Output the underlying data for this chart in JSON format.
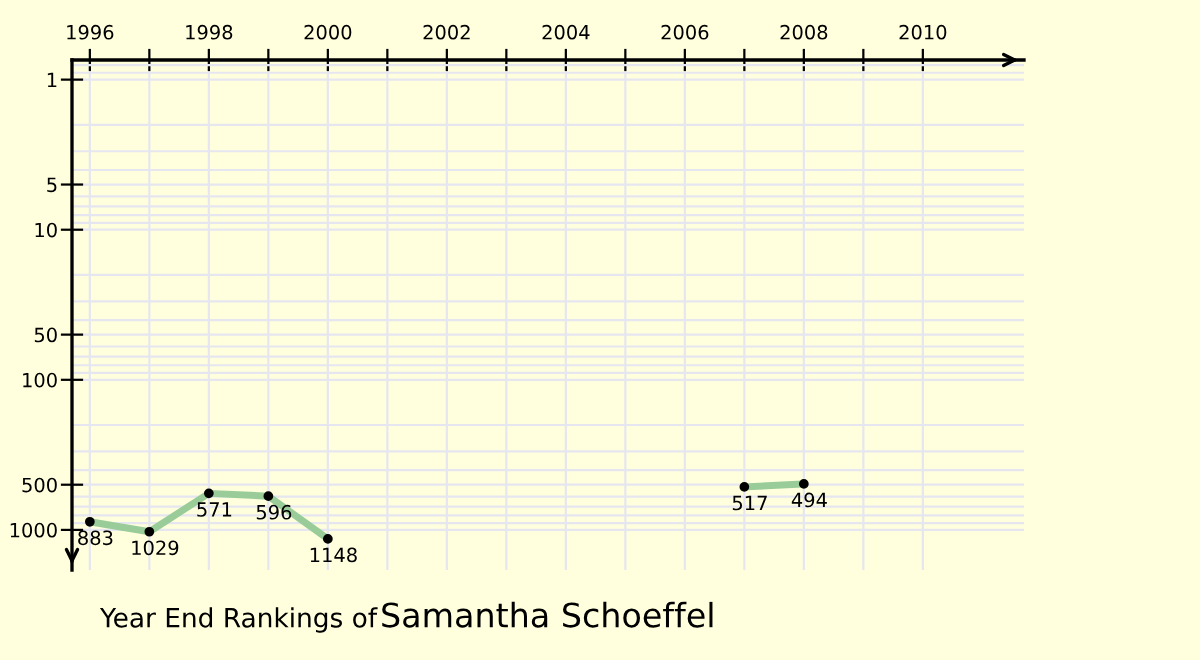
{
  "chart_data": {
    "type": "line",
    "title": "Year End Rankings of",
    "subtitle": "Samantha Schoeffel",
    "x": [
      1996,
      1997,
      1998,
      1999,
      2000,
      2001,
      2002,
      2003,
      2004,
      2005,
      2006,
      2007,
      2008
    ],
    "series": [
      {
        "color": "#99cc99",
        "values": [
          883,
          1029,
          571,
          596,
          1148,
          null,
          null,
          null,
          null,
          null,
          null,
          517,
          494
        ]
      }
    ],
    "xlim": [
      1995.7,
      2011.7
    ],
    "xticks": [
      1996,
      {
        "value": 1997,
        "label": null
      },
      1998,
      {
        "value": 1999,
        "label": null
      },
      2000,
      {
        "value": 2001,
        "label": null
      },
      2002,
      {
        "value": 2003,
        "label": null
      },
      2004,
      {
        "value": 2005,
        "label": null
      },
      2006,
      {
        "value": 2007,
        "label": null
      },
      2008,
      {
        "value": 2009,
        "label": null
      },
      2010
    ],
    "ylim": [
      1850,
      0.74
    ],
    "yticks": [
      1,
      5,
      10,
      50,
      100,
      500,
      1000
    ],
    "log": "y",
    "grid": true,
    "marker": "circle",
    "line_style": "solid",
    "data_labels": true
  }
}
